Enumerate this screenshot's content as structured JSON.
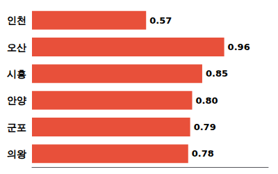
{
  "chart_data": {
    "type": "bar",
    "orientation": "horizontal",
    "categories": [
      "인천",
      "오산",
      "시흥",
      "안양",
      "군포",
      "의왕"
    ],
    "values": [
      0.57,
      0.96,
      0.85,
      0.8,
      0.79,
      0.78
    ],
    "value_labels": [
      "0.57",
      "0.96",
      "0.85",
      "0.80",
      "0.79",
      "0.78"
    ],
    "data_labels": true,
    "color": "#E8503A",
    "xlim": [
      0,
      1.18
    ],
    "tick_labels": "y",
    "grid": false
  }
}
